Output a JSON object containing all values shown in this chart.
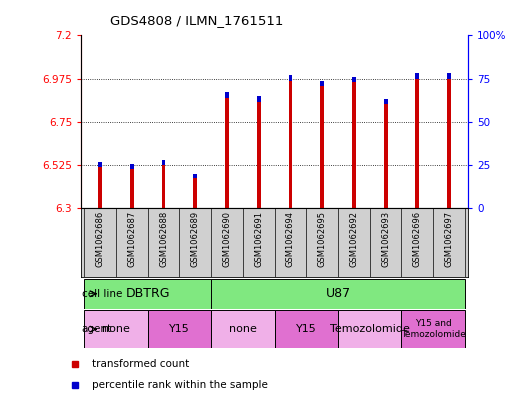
{
  "title": "GDS4808 / ILMN_1761511",
  "samples": [
    "GSM1062686",
    "GSM1062687",
    "GSM1062688",
    "GSM1062689",
    "GSM1062690",
    "GSM1062691",
    "GSM1062694",
    "GSM1062695",
    "GSM1062692",
    "GSM1062693",
    "GSM1062696",
    "GSM1062697"
  ],
  "red_values": [
    6.515,
    6.505,
    6.525,
    6.46,
    6.875,
    6.855,
    6.965,
    6.935,
    6.955,
    6.845,
    6.975,
    6.975
  ],
  "blue_heights": [
    0.028,
    0.024,
    0.024,
    0.02,
    0.03,
    0.03,
    0.03,
    0.03,
    0.028,
    0.024,
    0.03,
    0.03
  ],
  "ymin": 6.3,
  "ymax": 7.2,
  "yticks": [
    6.3,
    6.525,
    6.75,
    6.975,
    7.2
  ],
  "ytick_labels": [
    "6.3",
    "6.525",
    "6.75",
    "6.975",
    "7.2"
  ],
  "right_ytick_pcts": [
    0,
    25,
    50,
    75,
    100
  ],
  "right_ytick_labels": [
    "0",
    "25",
    "50",
    "75",
    "100%"
  ],
  "cell_line_groups": [
    {
      "label": "DBTRG",
      "start": 0,
      "end": 3
    },
    {
      "label": "U87",
      "start": 4,
      "end": 11
    }
  ],
  "agent_groups": [
    {
      "label": "none",
      "start": 0,
      "end": 1,
      "dark": false
    },
    {
      "label": "Y15",
      "start": 2,
      "end": 3,
      "dark": true
    },
    {
      "label": "none",
      "start": 4,
      "end": 5,
      "dark": false
    },
    {
      "label": "Y15",
      "start": 6,
      "end": 7,
      "dark": true
    },
    {
      "label": "Temozolomide",
      "start": 8,
      "end": 9,
      "dark": false
    },
    {
      "label": "Y15 and\nTemozolomide",
      "start": 10,
      "end": 11,
      "dark": true
    }
  ],
  "cell_line_color": "#80e880",
  "agent_color_light": "#f0b0e8",
  "agent_color_dark": "#e070d0",
  "bar_color_red": "#cc0000",
  "bar_color_blue": "#0000cc",
  "bar_base": 6.3,
  "bar_width": 0.12,
  "legend_red": "transformed count",
  "legend_blue": "percentile rank within the sample",
  "xtick_bg": "#d0d0d0"
}
